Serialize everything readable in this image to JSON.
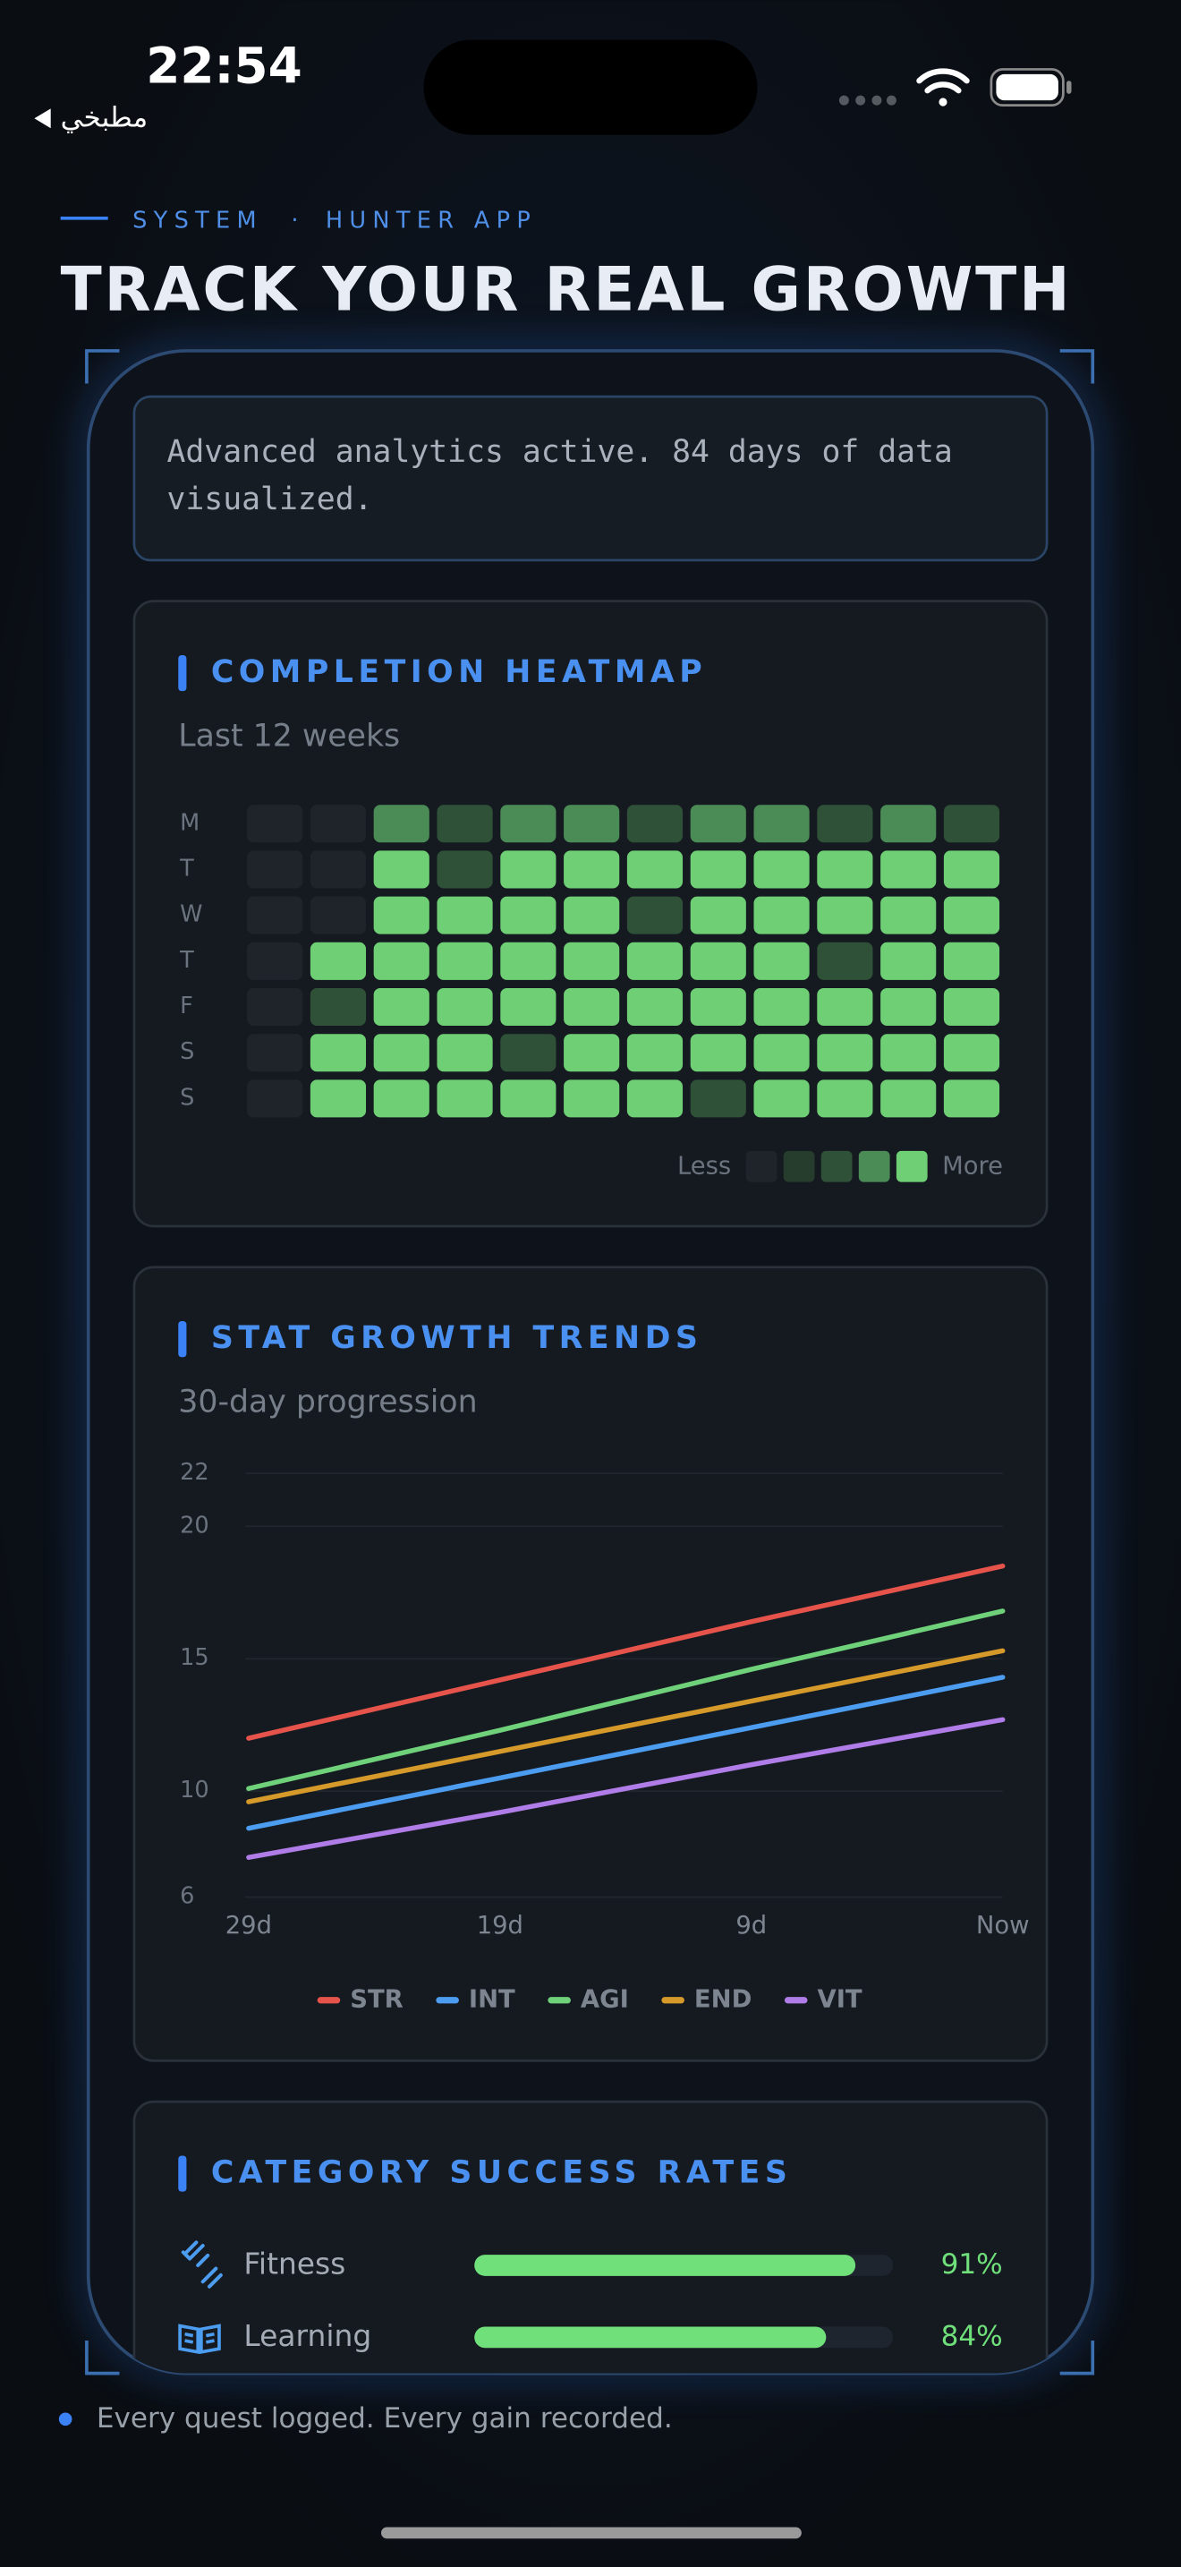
{
  "status_bar": {
    "time": "22:54",
    "back": "مطبخي"
  },
  "header": {
    "eyebrow_left": "SYSTEM",
    "separator": "·",
    "eyebrow_right": "HUNTER APP",
    "title": "TRACK YOUR REAL GROWTH"
  },
  "intro": "Advanced analytics active. 84 days of data visualized.",
  "heatmap": {
    "title": "COMPLETION HEATMAP",
    "subtitle": "Last 12 weeks",
    "days": [
      "M",
      "T",
      "W",
      "T",
      "F",
      "S",
      "S"
    ],
    "levels": [
      [
        0,
        0,
        3,
        2,
        3,
        3,
        2,
        3,
        3,
        2,
        3,
        2
      ],
      [
        0,
        0,
        4,
        2,
        4,
        4,
        4,
        4,
        4,
        4,
        4,
        4
      ],
      [
        0,
        0,
        4,
        4,
        4,
        4,
        2,
        4,
        4,
        4,
        4,
        4
      ],
      [
        0,
        4,
        4,
        4,
        4,
        4,
        4,
        4,
        4,
        2,
        4,
        4
      ],
      [
        0,
        2,
        4,
        4,
        4,
        4,
        4,
        4,
        4,
        4,
        4,
        4
      ],
      [
        0,
        4,
        4,
        4,
        2,
        4,
        4,
        4,
        4,
        4,
        4,
        4
      ],
      [
        0,
        4,
        4,
        4,
        4,
        4,
        4,
        2,
        4,
        4,
        4,
        4
      ]
    ],
    "colors": [
      "#1f242b",
      "#263c2d",
      "#2f5137",
      "#4b8b56",
      "#6fcf75"
    ],
    "legend_less": "Less",
    "legend_more": "More"
  },
  "trends": {
    "type": "line",
    "title": "STAT GROWTH TRENDS",
    "subtitle": "30-day progression",
    "categories": [
      "29d",
      "19d",
      "9d",
      "Now"
    ],
    "series": [
      {
        "name": "STR",
        "color": "#e5534b",
        "values": [
          12.0,
          14.2,
          16.4,
          18.5
        ]
      },
      {
        "name": "INT",
        "color": "#4c9cf0",
        "values": [
          8.6,
          10.5,
          12.4,
          14.3
        ]
      },
      {
        "name": "AGI",
        "color": "#6fd17a",
        "values": [
          10.1,
          12.3,
          14.6,
          16.8
        ]
      },
      {
        "name": "END",
        "color": "#d69a2a",
        "values": [
          9.6,
          11.5,
          13.4,
          15.3
        ]
      },
      {
        "name": "VIT",
        "color": "#b07ce8",
        "values": [
          7.5,
          9.2,
          11.0,
          12.7
        ]
      }
    ],
    "ylim": [
      6,
      22
    ],
    "yticks": [
      6,
      10,
      15,
      20,
      22
    ],
    "grid": true
  },
  "success": {
    "title": "CATEGORY SUCCESS RATES",
    "color": "#6fe07a",
    "rows": [
      {
        "name": "Fitness",
        "value": 91,
        "value_label": "91%"
      },
      {
        "name": "Learning",
        "value": 84,
        "value_label": "84%"
      }
    ]
  },
  "footer": "Every quest logged. Every gain recorded."
}
